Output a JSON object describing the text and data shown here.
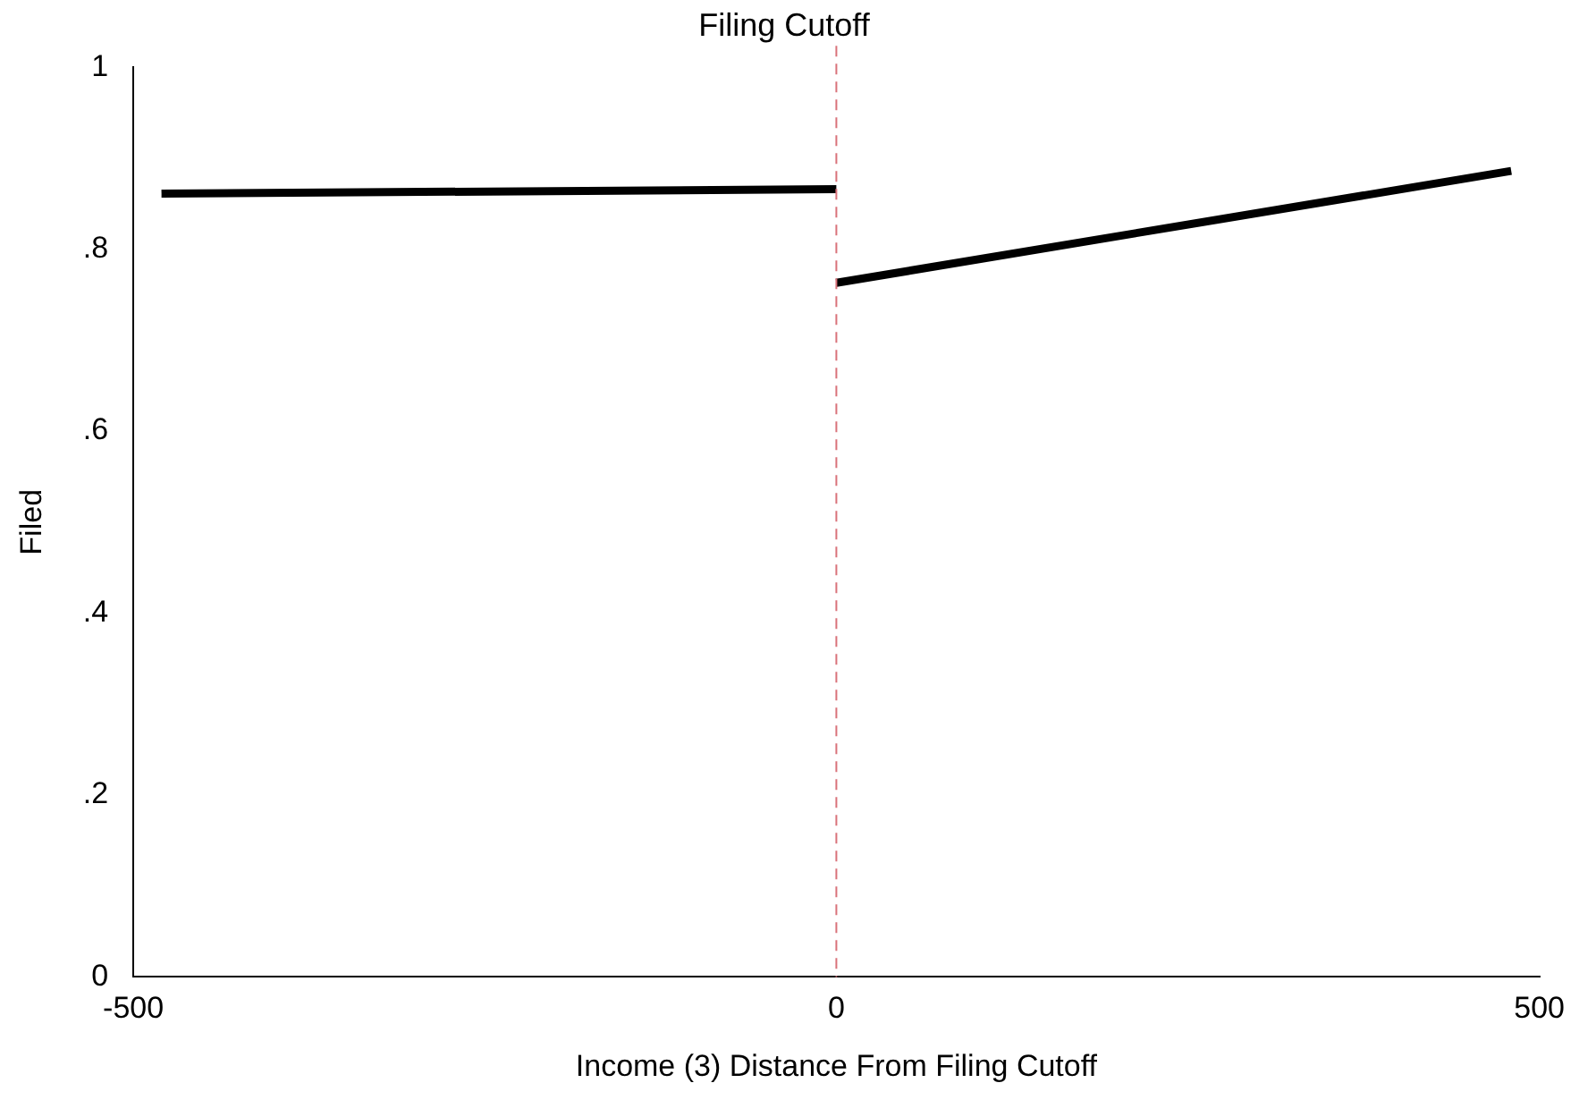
{
  "chart_data": {
    "type": "line",
    "title": "Filing Cutoff",
    "xlabel": "Income (3) Distance From Filing Cutoff",
    "ylabel": "Filed",
    "series": [
      {
        "color": "#000000",
        "x": [
          -480,
          0
        ],
        "values": [
          0.861,
          0.866
        ]
      },
      {
        "color": "#000000",
        "x": [
          0,
          480
        ],
        "values": [
          0.763,
          0.886
        ]
      }
    ],
    "xlim": [
      -500,
      500
    ],
    "xticks": [
      -500,
      0,
      500
    ],
    "ylim": [
      0,
      1
    ],
    "yticks": [
      0,
      {
        "value": 0.2,
        "label": ".2"
      },
      {
        "value": 0.4,
        "label": ".4"
      },
      {
        "value": 0.6,
        "label": ".6"
      },
      {
        "value": 0.8,
        "label": ".8"
      },
      1
    ],
    "ref_lines": [
      {
        "axis": "x",
        "value": 0,
        "color": "#d9727a",
        "line_style": "dashed"
      }
    ],
    "grid": false,
    "legend": false,
    "marker": "none",
    "line_style": "solid"
  }
}
